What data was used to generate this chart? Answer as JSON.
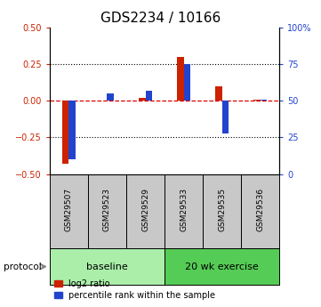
{
  "title": "GDS2234 / 10166",
  "samples": [
    "GSM29507",
    "GSM29523",
    "GSM29529",
    "GSM29533",
    "GSM29535",
    "GSM29536"
  ],
  "log2_ratio": [
    -0.43,
    0.0,
    0.02,
    0.3,
    0.1,
    0.01
  ],
  "percentile_rank": [
    10,
    55,
    57,
    75,
    28,
    51
  ],
  "ylim_left": [
    -0.5,
    0.5
  ],
  "ylim_right": [
    0,
    100
  ],
  "yticks_left": [
    -0.5,
    -0.25,
    0,
    0.25,
    0.5
  ],
  "yticks_right": [
    0,
    25,
    50,
    75,
    100
  ],
  "protocol_groups": [
    {
      "label": "baseline",
      "start": 0,
      "end": 2,
      "color": "#aaeeaa"
    },
    {
      "label": "20 wk exercise",
      "start": 3,
      "end": 5,
      "color": "#55cc55"
    }
  ],
  "red_color": "#cc2200",
  "blue_color": "#2244cc",
  "red_dashed_color": "#dd0000",
  "tick_label_area_color": "#c8c8c8",
  "protocol_label": "protocol",
  "legend_red": "log2 ratio",
  "legend_blue": "percentile rank within the sample",
  "title_fontsize": 11,
  "legend_fontsize": 7
}
